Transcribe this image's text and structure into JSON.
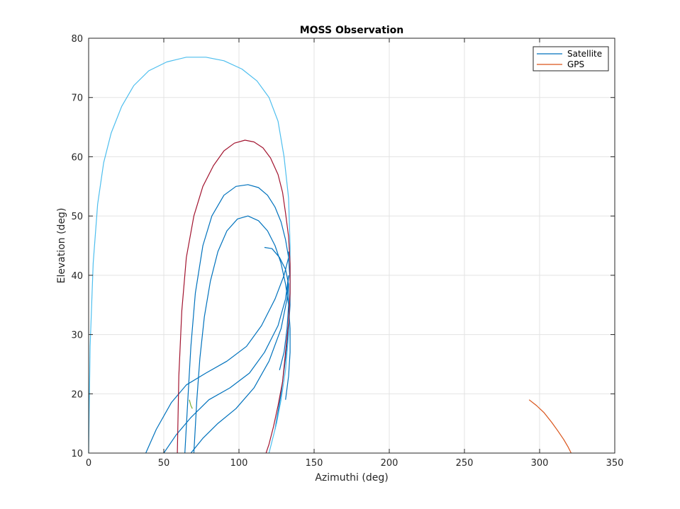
{
  "chart_data": {
    "type": "line",
    "title": "MOSS Observation",
    "xlabel": "Azimuthi (deg)",
    "ylabel": "Elevation (deg)",
    "xlim": [
      0,
      350
    ],
    "ylim": [
      10,
      80
    ],
    "xticks": [
      0,
      50,
      100,
      150,
      200,
      250,
      300,
      350
    ],
    "yticks": [
      10,
      20,
      30,
      40,
      50,
      60,
      70,
      80
    ],
    "grid": true,
    "legend": {
      "location": "top-right",
      "entries": [
        {
          "name": "Satellite",
          "color": "#0072BD"
        },
        {
          "name": "GPS",
          "color": "#D95319"
        }
      ]
    },
    "series": [
      {
        "legend": "Satellite",
        "color": "#0072BD",
        "x": [
          38,
          45,
          55,
          65,
          78,
          92,
          105,
          115,
          124,
          130,
          133,
          133
        ],
        "y": [
          10,
          14,
          18.5,
          21.5,
          23.5,
          25.5,
          28,
          31.5,
          36,
          40,
          43,
          44
        ]
      },
      {
        "legend": "Satellite",
        "color": "#0072BD",
        "x": [
          50,
          58,
          68,
          80,
          94,
          107,
          117,
          126,
          131,
          133
        ],
        "y": [
          10,
          13,
          16,
          19,
          21,
          23.5,
          27,
          31.5,
          36,
          40
        ]
      },
      {
        "legend": "Satellite",
        "color": "#0072BD",
        "x": [
          68,
          76,
          86,
          98,
          110,
          120,
          128,
          132,
          133
        ],
        "y": [
          10,
          12.5,
          15,
          17.5,
          21,
          25.5,
          31,
          36,
          40
        ]
      },
      {
        "legend": "Satellite",
        "color": "#0072BD",
        "x": [
          117,
          122,
          127,
          131,
          133,
          133,
          132,
          130,
          127
        ],
        "y": [
          44.7,
          44.5,
          43,
          41,
          38.5,
          35,
          31,
          27,
          24
        ]
      },
      {
        "legend": "Satellite",
        "color": "#0072BD",
        "x": [
          64,
          66,
          68,
          71,
          76,
          82,
          90,
          98,
          106,
          113,
          119,
          124,
          128,
          131,
          133,
          134,
          134,
          133,
          131,
          128,
          124
        ],
        "y": [
          10,
          19,
          28,
          37,
          45,
          50,
          53.5,
          55,
          55.3,
          54.8,
          53.5,
          51.5,
          49,
          46,
          43,
          39,
          35,
          31,
          26,
          20,
          14
        ]
      },
      {
        "legend": "Satellite",
        "color": "#0072BD",
        "x": [
          70,
          72,
          74,
          77,
          81,
          86,
          92,
          99,
          106,
          113,
          119,
          124,
          128,
          131,
          133,
          134,
          134,
          133,
          131
        ],
        "y": [
          10,
          19,
          26,
          33,
          39,
          44,
          47.5,
          49.5,
          50,
          49.2,
          47.5,
          45,
          42,
          38.5,
          35,
          31,
          27,
          23,
          19
        ]
      },
      {
        "legend": "Satellite",
        "color": "#4DBEEE",
        "x": [
          0,
          1,
          3,
          6,
          10,
          15,
          22,
          30,
          40,
          52,
          65,
          78,
          90,
          102,
          112,
          120,
          126,
          130,
          133,
          134,
          134,
          133,
          131,
          128,
          125,
          122,
          120
        ],
        "y": [
          10,
          28,
          42,
          52,
          59,
          64,
          68.5,
          72,
          74.5,
          76,
          76.8,
          76.8,
          76.2,
          74.8,
          72.8,
          70,
          66,
          60,
          53,
          45,
          37,
          30,
          24,
          19,
          15,
          12,
          10
        ]
      },
      {
        "legend": "Satellite",
        "color": "#A2142F",
        "x": [
          59,
          60,
          62,
          65,
          70,
          76,
          83,
          90,
          97,
          104,
          110,
          116,
          121,
          126,
          129,
          131,
          133,
          134,
          134,
          133,
          131,
          129,
          126,
          123,
          120,
          118
        ],
        "y": [
          10,
          23,
          34,
          43,
          50,
          55,
          58.5,
          61,
          62.3,
          62.8,
          62.5,
          61.5,
          59.8,
          57,
          54,
          50.5,
          46.5,
          42,
          37,
          32,
          27,
          22,
          18,
          14.5,
          11.5,
          10
        ]
      },
      {
        "legend": "Satellite",
        "color": "#77AC30",
        "x": [
          67,
          68,
          69
        ],
        "y": [
          19,
          18,
          17.5
        ]
      },
      {
        "legend": "GPS",
        "color": "#D95319",
        "x": [
          293,
          298,
          303,
          308,
          312,
          316,
          319,
          321
        ],
        "y": [
          19,
          18,
          16.8,
          15.2,
          13.8,
          12.3,
          11,
          10
        ]
      }
    ]
  }
}
